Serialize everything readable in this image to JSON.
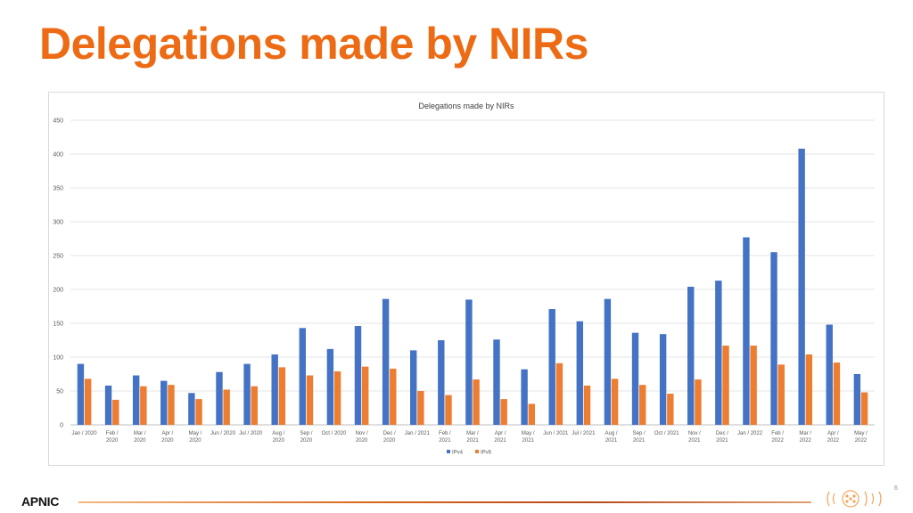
{
  "slide": {
    "title": "Delegations made by NIRs",
    "logo": "APNIC",
    "page_number": "6",
    "emblem_icon": "apnic-anniversary-emblem"
  },
  "colors": {
    "title": "#ec6b14",
    "ipv4": "#4472c4",
    "ipv6": "#ed7d31",
    "footer_line": "#d9651a",
    "emblem": "#f2a65a"
  },
  "chart_data": {
    "type": "bar",
    "title": "Delegations made by NIRs",
    "xlabel": "",
    "ylabel": "",
    "ylim": [
      0,
      450
    ],
    "yticks": [
      0,
      50,
      100,
      150,
      200,
      250,
      300,
      350,
      400,
      450
    ],
    "grid": true,
    "legend_position": "bottom-center",
    "categories": [
      [
        "Jan / 2020"
      ],
      [
        "Feb /",
        "2020"
      ],
      [
        "Mar /",
        "2020"
      ],
      [
        "Apr /",
        "2020"
      ],
      [
        "May /",
        "2020"
      ],
      [
        "Jun / 2020"
      ],
      [
        "Jul / 2020"
      ],
      [
        "Aug /",
        "2020"
      ],
      [
        "Sep /",
        "2020"
      ],
      [
        "Oct / 2020"
      ],
      [
        "Nov /",
        "2020"
      ],
      [
        "Dec /",
        "2020"
      ],
      [
        "Jan / 2021"
      ],
      [
        "Feb /",
        "2021"
      ],
      [
        "Mar /",
        "2021"
      ],
      [
        "Apr /",
        "2021"
      ],
      [
        "May /",
        "2021"
      ],
      [
        "Jun / 2021"
      ],
      [
        "Jul / 2021"
      ],
      [
        "Aug /",
        "2021"
      ],
      [
        "Sep /",
        "2021"
      ],
      [
        "Oct / 2021"
      ],
      [
        "Nov /",
        "2021"
      ],
      [
        "Dec /",
        "2021"
      ],
      [
        "Jan / 2022"
      ],
      [
        "Feb /",
        "2022"
      ],
      [
        "Mar /",
        "2022"
      ],
      [
        "Apr /",
        "2022"
      ],
      [
        "May /",
        "2022"
      ]
    ],
    "series": [
      {
        "name": "IPv4",
        "color": "#4472c4",
        "values": [
          90,
          58,
          73,
          65,
          47,
          78,
          90,
          104,
          143,
          112,
          146,
          186,
          110,
          125,
          185,
          126,
          82,
          171,
          153,
          186,
          136,
          134,
          204,
          213,
          277,
          255,
          408,
          148,
          75
        ]
      },
      {
        "name": "IPv6",
        "color": "#ed7d31",
        "values": [
          68,
          37,
          57,
          59,
          38,
          52,
          57,
          85,
          73,
          79,
          86,
          83,
          50,
          44,
          67,
          38,
          31,
          91,
          58,
          68,
          59,
          46,
          67,
          117,
          117,
          89,
          104,
          92,
          48
        ]
      }
    ]
  }
}
